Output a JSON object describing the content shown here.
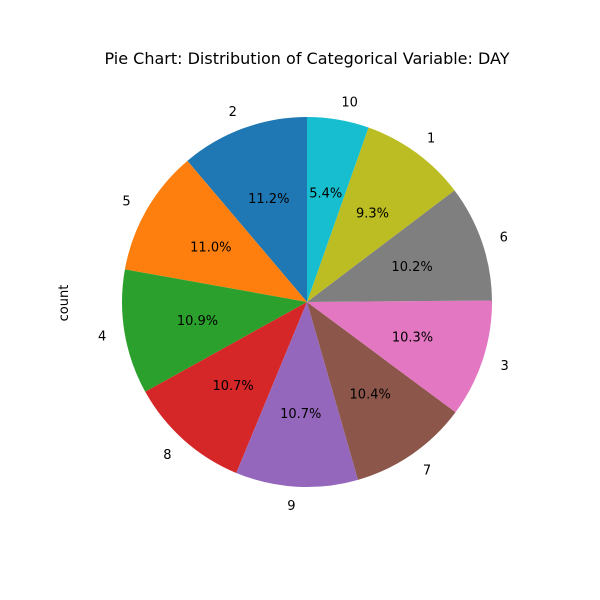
{
  "chart_data": {
    "type": "pie",
    "title": "Pie Chart: Distribution of Categorical Variable: DAY",
    "ylabel": "count",
    "categories": [
      "2",
      "5",
      "4",
      "8",
      "9",
      "7",
      "3",
      "6",
      "1",
      "10"
    ],
    "values": [
      11.2,
      11.0,
      10.9,
      10.7,
      10.7,
      10.4,
      10.3,
      10.2,
      9.3,
      5.4
    ],
    "percent_labels": [
      "11.2%",
      "11.0%",
      "10.9%",
      "10.7%",
      "10.7%",
      "10.4%",
      "10.3%",
      "10.2%",
      "9.3%",
      "5.4%"
    ],
    "colors": [
      "#1f77b4",
      "#ff7f0e",
      "#2ca02c",
      "#d62728",
      "#9467bd",
      "#8c564b",
      "#e377c2",
      "#7f7f7f",
      "#bcbd22",
      "#17becf"
    ],
    "start_angle_deg": 90,
    "direction": "counterclockwise"
  }
}
